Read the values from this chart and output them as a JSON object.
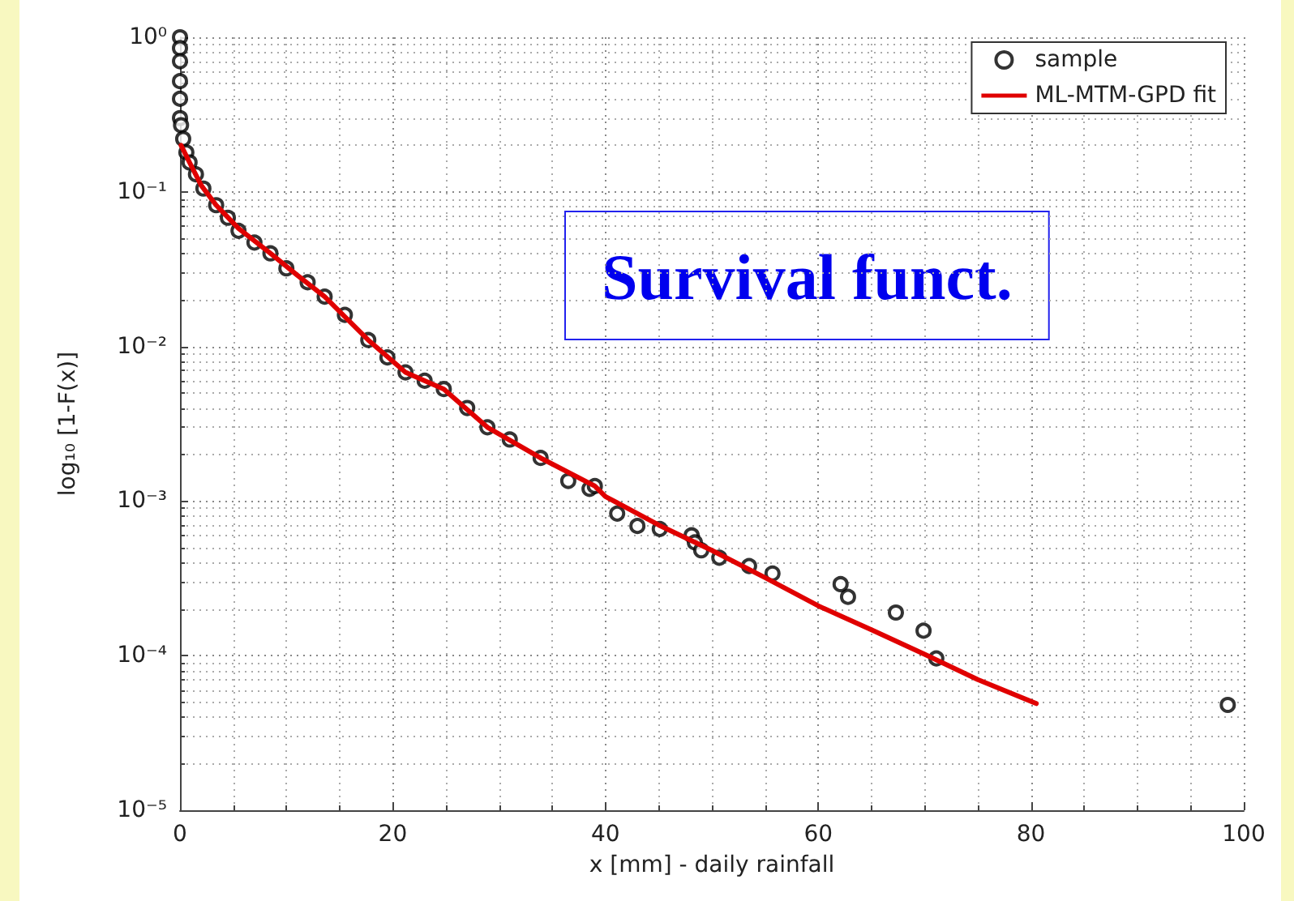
{
  "chart_data": {
    "type": "scatter",
    "xlabel": "x [mm] - daily rainfall",
    "ylabel": "log₁₀ [1-F(x)]",
    "annotations": [
      "Survival funct."
    ],
    "xlim": [
      0,
      100
    ],
    "xticks": [
      0,
      20,
      40,
      60,
      80,
      100
    ],
    "ylim": [
      1e-05,
      1
    ],
    "yticks": [
      {
        "value": 1e-05,
        "label": "10⁻⁵"
      },
      {
        "value": 0.0001,
        "label": "10⁻⁴"
      },
      {
        "value": 0.001,
        "label": "10⁻³"
      },
      {
        "value": 0.01,
        "label": "10⁻²"
      },
      {
        "value": 0.1,
        "label": "10⁻¹"
      },
      {
        "value": 1,
        "label": "10⁰"
      }
    ],
    "log": "y",
    "grid": true,
    "legend": "top right",
    "marker": "circle",
    "series": [
      {
        "name": "sample",
        "color": "#000000",
        "x": [
          0,
          0,
          0,
          0,
          0,
          0,
          0.1,
          0.3,
          0.6,
          0.9,
          1.5,
          2.2,
          3.4,
          4.5,
          5.5,
          7,
          8.5,
          10,
          12,
          13.6,
          15.5,
          17.7,
          19.5,
          21.2,
          23,
          24.8,
          27,
          28.9,
          31,
          33.9,
          36.5,
          38.5,
          39,
          41.1,
          43,
          45.1,
          48.1,
          48.4,
          49,
          50.7,
          53.5,
          55.7,
          62.1,
          62.8,
          67.3,
          69.9,
          71.1,
          98.5
        ],
        "values": [
          1,
          0.85,
          0.7,
          0.52,
          0.4,
          0.3,
          0.27,
          0.22,
          0.18,
          0.155,
          0.13,
          0.105,
          0.082,
          0.068,
          0.056,
          0.047,
          0.04,
          0.032,
          0.026,
          0.021,
          0.016,
          0.011,
          0.0085,
          0.0068,
          0.006,
          0.0053,
          0.004,
          0.003,
          0.0025,
          0.0019,
          0.00135,
          0.0012,
          0.00125,
          0.00083,
          0.00069,
          0.00066,
          0.0006,
          0.00054,
          0.00048,
          0.00043,
          0.00038,
          0.00034,
          0.00029,
          0.00024,
          0.00019,
          0.000145,
          9.6e-05,
          4.8e-05
        ]
      },
      {
        "name": "ML-MTM-GPD fit",
        "type": "line",
        "color": "#e00000",
        "marker": "none",
        "line_style": "solid",
        "x": [
          0.1,
          0.9,
          2,
          3.4,
          5.5,
          8.5,
          11,
          13.6,
          17.7,
          21.2,
          24.8,
          28.9,
          33.9,
          39,
          40,
          45,
          50,
          55,
          60,
          65,
          70,
          75,
          80.5
        ],
        "values": [
          0.2,
          0.155,
          0.11,
          0.082,
          0.058,
          0.04,
          0.029,
          0.021,
          0.011,
          0.0068,
          0.0053,
          0.003,
          0.0019,
          0.00125,
          0.00107,
          0.0007,
          0.00048,
          0.00032,
          0.00021,
          0.000147,
          0.000102,
          7e-05,
          4.9e-05
        ]
      }
    ]
  }
}
